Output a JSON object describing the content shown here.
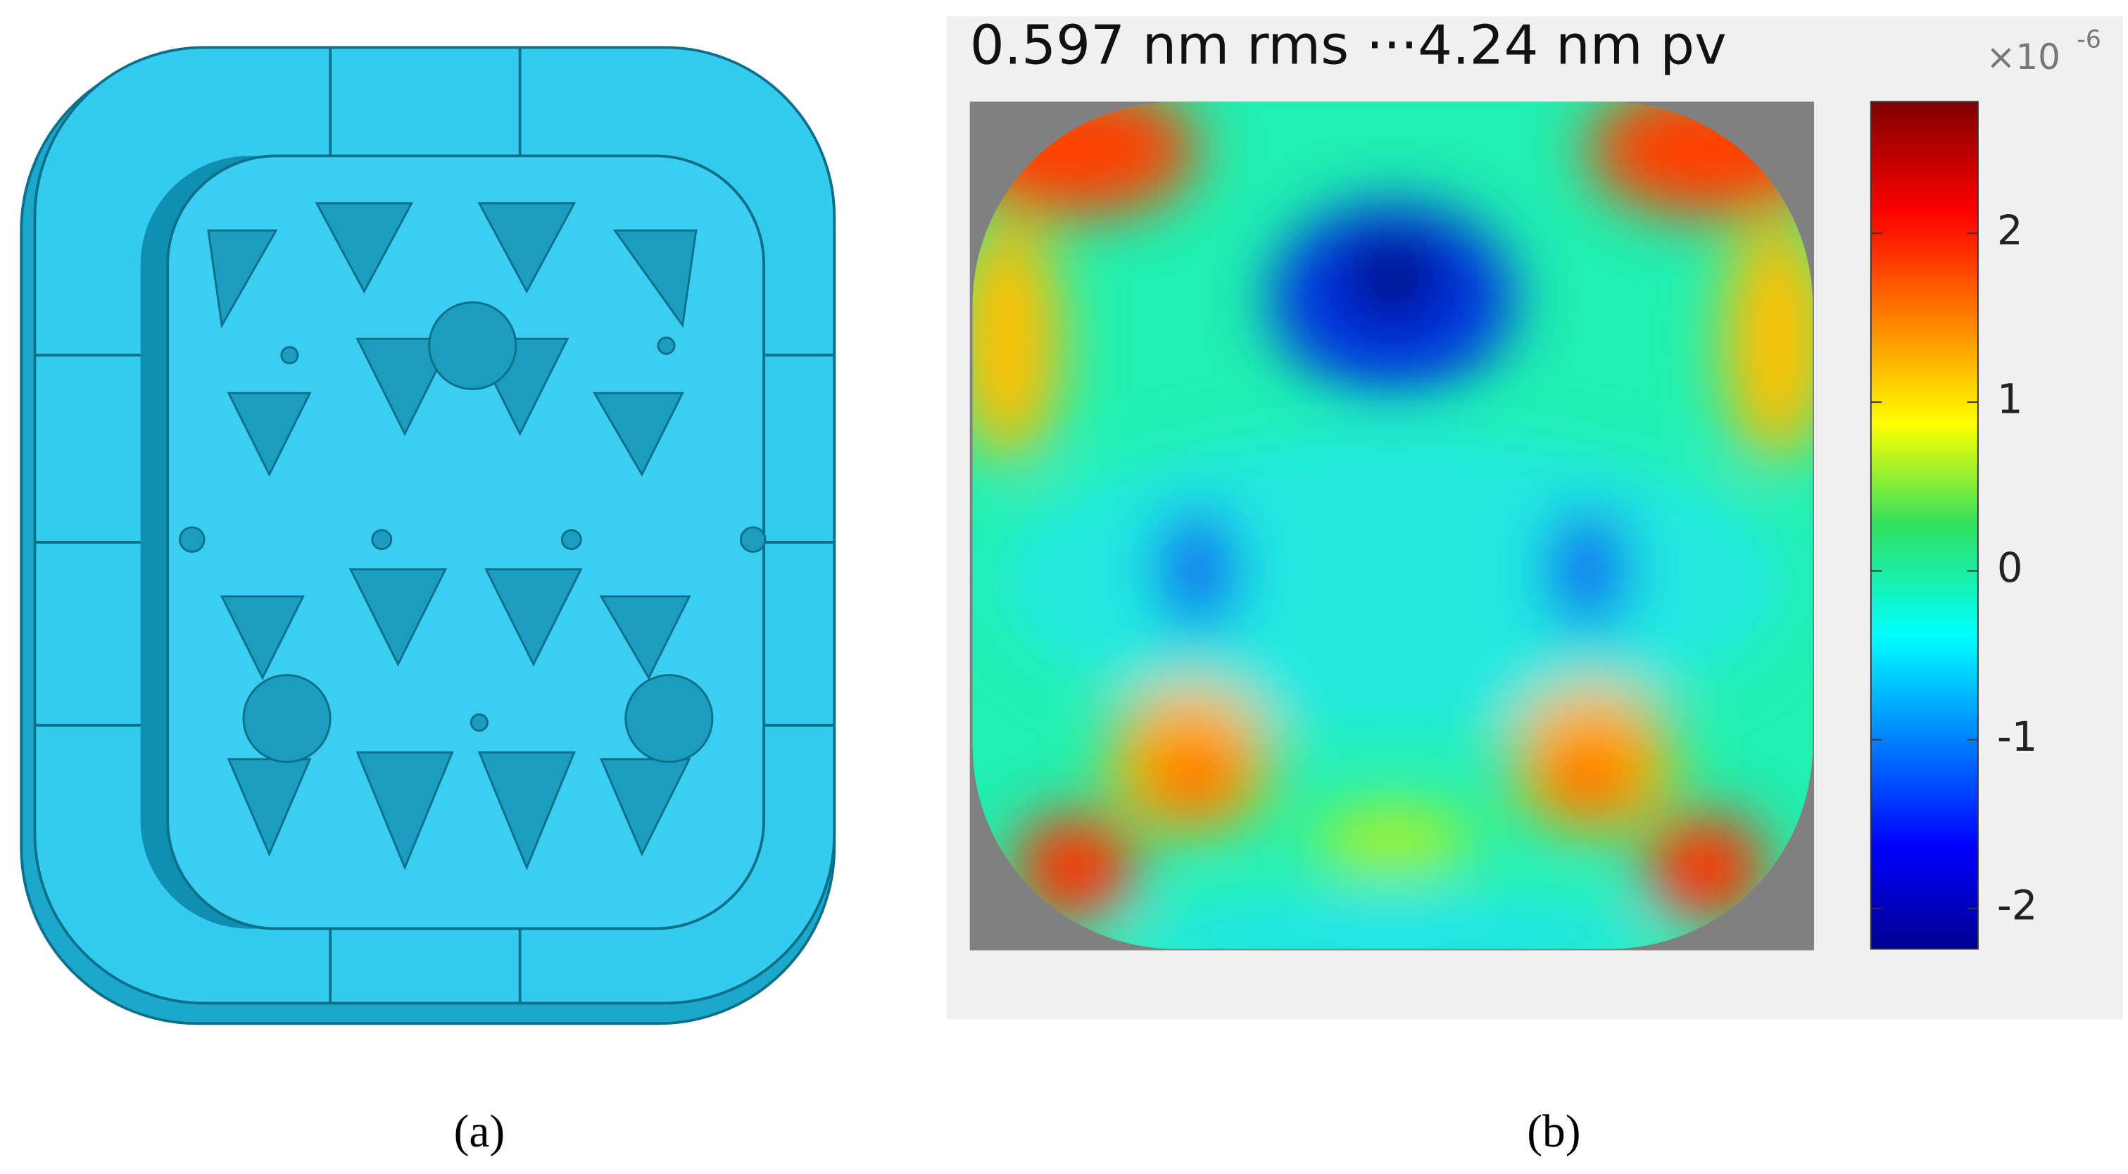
{
  "panels": [
    {
      "label": "(a)"
    },
    {
      "label": "(b)",
      "title": "0.597 nm rms ···4.24 nm pv",
      "colorbar": {
        "scale_label": "×10",
        "scale_exponent": "-6",
        "clim": [
          -2.24,
          2.78
        ],
        "ticks": [
          2,
          1,
          0,
          -1,
          -2
        ]
      }
    }
  ]
}
